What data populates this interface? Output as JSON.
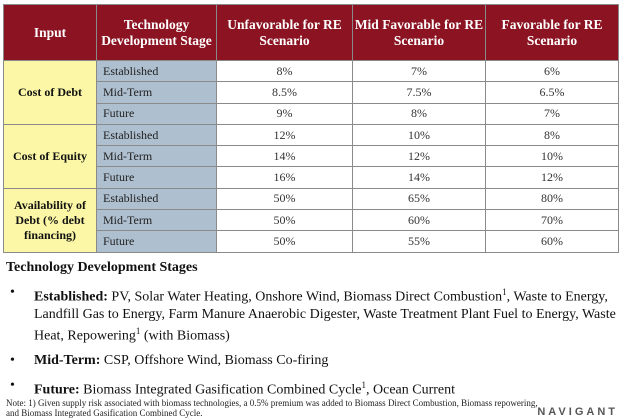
{
  "table": {
    "headers": [
      "Input",
      "Technology Development Stage",
      "Unfavorable for RE Scenario",
      "Mid Favorable for RE Scenario",
      "Favorable for RE Scenario"
    ],
    "groups": [
      {
        "label": "Cost of Debt",
        "rows": [
          {
            "stage": "Established",
            "values": [
              "8%",
              "7%",
              "6%"
            ]
          },
          {
            "stage": "Mid-Term",
            "values": [
              "8.5%",
              "7.5%",
              "6.5%"
            ]
          },
          {
            "stage": "Future",
            "values": [
              "9%",
              "8%",
              "7%"
            ]
          }
        ]
      },
      {
        "label": "Cost of Equity",
        "rows": [
          {
            "stage": "Established",
            "values": [
              "12%",
              "10%",
              "8%"
            ]
          },
          {
            "stage": "Mid-Term",
            "values": [
              "14%",
              "12%",
              "10%"
            ]
          },
          {
            "stage": "Future",
            "values": [
              "16%",
              "14%",
              "12%"
            ]
          }
        ]
      },
      {
        "label": "Availability of Debt (% debt financing)",
        "rows": [
          {
            "stage": "Established",
            "values": [
              "50%",
              "65%",
              "80%"
            ]
          },
          {
            "stage": "Mid-Term",
            "values": [
              "50%",
              "60%",
              "70%"
            ]
          },
          {
            "stage": "Future",
            "values": [
              "50%",
              "55%",
              "60%"
            ]
          }
        ]
      }
    ]
  },
  "stages": {
    "title": "Technology Development Stages",
    "items": [
      {
        "term": "Established:",
        "pre": " PV, Solar Water Heating, Onshore Wind, Biomass Direct Combustion",
        "sup": "1",
        "post": ", Waste to Energy, Landfill Gas to Energy, Farm Manure Anaerobic Digester, Waste Treatment Plant Fuel to Energy, Waste Heat, Repowering",
        "sup2": "1",
        "post2": " (with Biomass)"
      },
      {
        "term": "Mid-Term:",
        "pre": " CSP, Offshore Wind, Biomass Co-firing",
        "sup": "",
        "post": "",
        "sup2": "",
        "post2": ""
      },
      {
        "term": "Future:",
        "pre": " Biomass Integrated Gasification Combined Cycle",
        "sup": "1",
        "post": ", Ocean Current",
        "sup2": "",
        "post2": ""
      }
    ]
  },
  "note": "Note: 1) Given supply risk associated with biomass technologies, a 0.5% premium was added to Biomass Direct Combustion, Biomass repowering, and Biomass Integrated Gasification Combined Cycle.",
  "logo": "NAVIGANT",
  "colors": {
    "header_bg": "#8b1322",
    "group_bg": "#fbf7a6",
    "stage_bg": "#aebfcf"
  }
}
